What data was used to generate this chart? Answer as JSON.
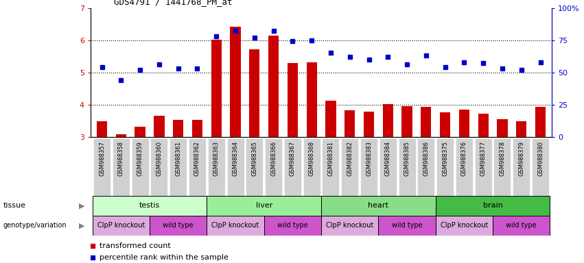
{
  "title": "GDS4791 / 1441768_PM_at",
  "samples": [
    "GSM988357",
    "GSM988358",
    "GSM988359",
    "GSM988360",
    "GSM988361",
    "GSM988362",
    "GSM988363",
    "GSM988364",
    "GSM988365",
    "GSM988366",
    "GSM988367",
    "GSM988368",
    "GSM988381",
    "GSM988382",
    "GSM988383",
    "GSM988384",
    "GSM988385",
    "GSM988386",
    "GSM988375",
    "GSM988376",
    "GSM988377",
    "GSM988378",
    "GSM988379",
    "GSM988380"
  ],
  "bar_values": [
    3.48,
    3.08,
    3.32,
    3.65,
    3.52,
    3.52,
    6.02,
    6.42,
    5.72,
    6.15,
    5.28,
    5.3,
    4.12,
    3.82,
    3.78,
    4.02,
    3.95,
    3.92,
    3.75,
    3.85,
    3.72,
    3.55,
    3.48,
    3.92
  ],
  "dot_values": [
    54,
    44,
    52,
    56,
    53,
    53,
    78,
    82,
    77,
    82,
    74,
    75,
    65,
    62,
    60,
    62,
    56,
    63,
    54,
    58,
    57,
    53,
    52,
    58
  ],
  "bar_color": "#cc0000",
  "dot_color": "#0000cc",
  "ylim_left": [
    3,
    7
  ],
  "ylim_right": [
    0,
    100
  ],
  "yticks_left": [
    3,
    4,
    5,
    6,
    7
  ],
  "yticks_right": [
    0,
    25,
    50,
    75,
    100
  ],
  "ytick_labels_right": [
    "0",
    "25",
    "50",
    "75",
    "100%"
  ],
  "hlines": [
    4,
    5,
    6
  ],
  "tissue_groups": [
    {
      "label": "testis",
      "start": 0,
      "end": 5,
      "color": "#ccffcc"
    },
    {
      "label": "liver",
      "start": 6,
      "end": 11,
      "color": "#99ee99"
    },
    {
      "label": "heart",
      "start": 12,
      "end": 17,
      "color": "#88dd88"
    },
    {
      "label": "brain",
      "start": 18,
      "end": 23,
      "color": "#44bb44"
    }
  ],
  "genotype_groups": [
    {
      "label": "ClpP knockout",
      "start": 0,
      "end": 2,
      "color": "#ddaadd"
    },
    {
      "label": "wild type",
      "start": 3,
      "end": 5,
      "color": "#cc55cc"
    },
    {
      "label": "ClpP knockout",
      "start": 6,
      "end": 8,
      "color": "#ddaadd"
    },
    {
      "label": "wild type",
      "start": 9,
      "end": 11,
      "color": "#cc55cc"
    },
    {
      "label": "ClpP knockout",
      "start": 12,
      "end": 14,
      "color": "#ddaadd"
    },
    {
      "label": "wild type",
      "start": 15,
      "end": 17,
      "color": "#cc55cc"
    },
    {
      "label": "ClpP knockout",
      "start": 18,
      "end": 20,
      "color": "#ddaadd"
    },
    {
      "label": "wild type",
      "start": 21,
      "end": 23,
      "color": "#cc55cc"
    }
  ],
  "legend_items": [
    {
      "label": "transformed count",
      "color": "#cc0000"
    },
    {
      "label": "percentile rank within the sample",
      "color": "#0000cc"
    }
  ],
  "background_color": "#ffffff",
  "tissue_row_label": "tissue",
  "genotype_row_label": "genotype/variation"
}
